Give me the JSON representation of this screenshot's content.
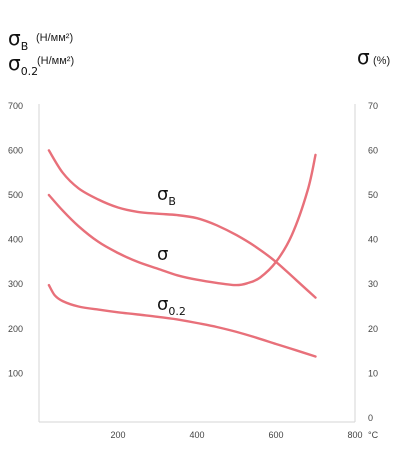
{
  "chart_data": {
    "type": "line",
    "left_axis": {
      "symbols": [
        {
          "symbol": "σ",
          "subscript": "B",
          "unit": "(H/мм²)"
        },
        {
          "symbol": "σ",
          "subscript": "0.2",
          "unit": "(H/мм²)"
        }
      ],
      "ylim": [
        0,
        700
      ],
      "ticks": [
        "700",
        "600",
        "500",
        "400",
        "300",
        "200",
        "100"
      ]
    },
    "right_axis": {
      "symbol": "σ",
      "unit": "(%)",
      "ylim": [
        0,
        70
      ],
      "ticks": [
        "70",
        "60",
        "50",
        "40",
        "30",
        "20",
        "10",
        "0"
      ]
    },
    "x_axis": {
      "xlim": [
        0,
        800
      ],
      "ticks": [
        "200",
        "400",
        "600",
        "800"
      ],
      "unit": "°C"
    },
    "series": [
      {
        "name": "σB",
        "label_symbol": "σ",
        "label_subscript": "B",
        "axis": "left",
        "color": "#e8707a",
        "x": [
          25,
          60,
          100,
          150,
          200,
          250,
          300,
          350,
          400,
          450,
          500,
          550,
          600,
          650,
          700
        ],
        "y": [
          600,
          550,
          515,
          490,
          472,
          462,
          458,
          455,
          448,
          432,
          410,
          383,
          350,
          310,
          270
        ]
      },
      {
        "name": "σ",
        "label_symbol": "σ",
        "label_subscript": "",
        "axis": "right",
        "color": "#e8707a",
        "x": [
          25,
          60,
          100,
          150,
          200,
          250,
          300,
          350,
          400,
          450,
          500,
          530,
          560,
          600,
          640,
          680,
          700
        ],
        "y": [
          50,
          46.5,
          43,
          39.5,
          37,
          35,
          33.5,
          32,
          31,
          30.3,
          29.8,
          30.3,
          31.5,
          35,
          41,
          51,
          59
        ]
      },
      {
        "name": "σ0.2",
        "label_symbol": "σ",
        "label_subscript": "0.2",
        "axis": "left",
        "color": "#e8707a",
        "x": [
          25,
          40,
          60,
          100,
          150,
          200,
          250,
          300,
          350,
          400,
          450,
          500,
          550,
          600,
          650,
          700
        ],
        "y": [
          298,
          275,
          262,
          250,
          243,
          237,
          232,
          227,
          221,
          213,
          204,
          193,
          180,
          166,
          152,
          138
        ]
      }
    ]
  }
}
